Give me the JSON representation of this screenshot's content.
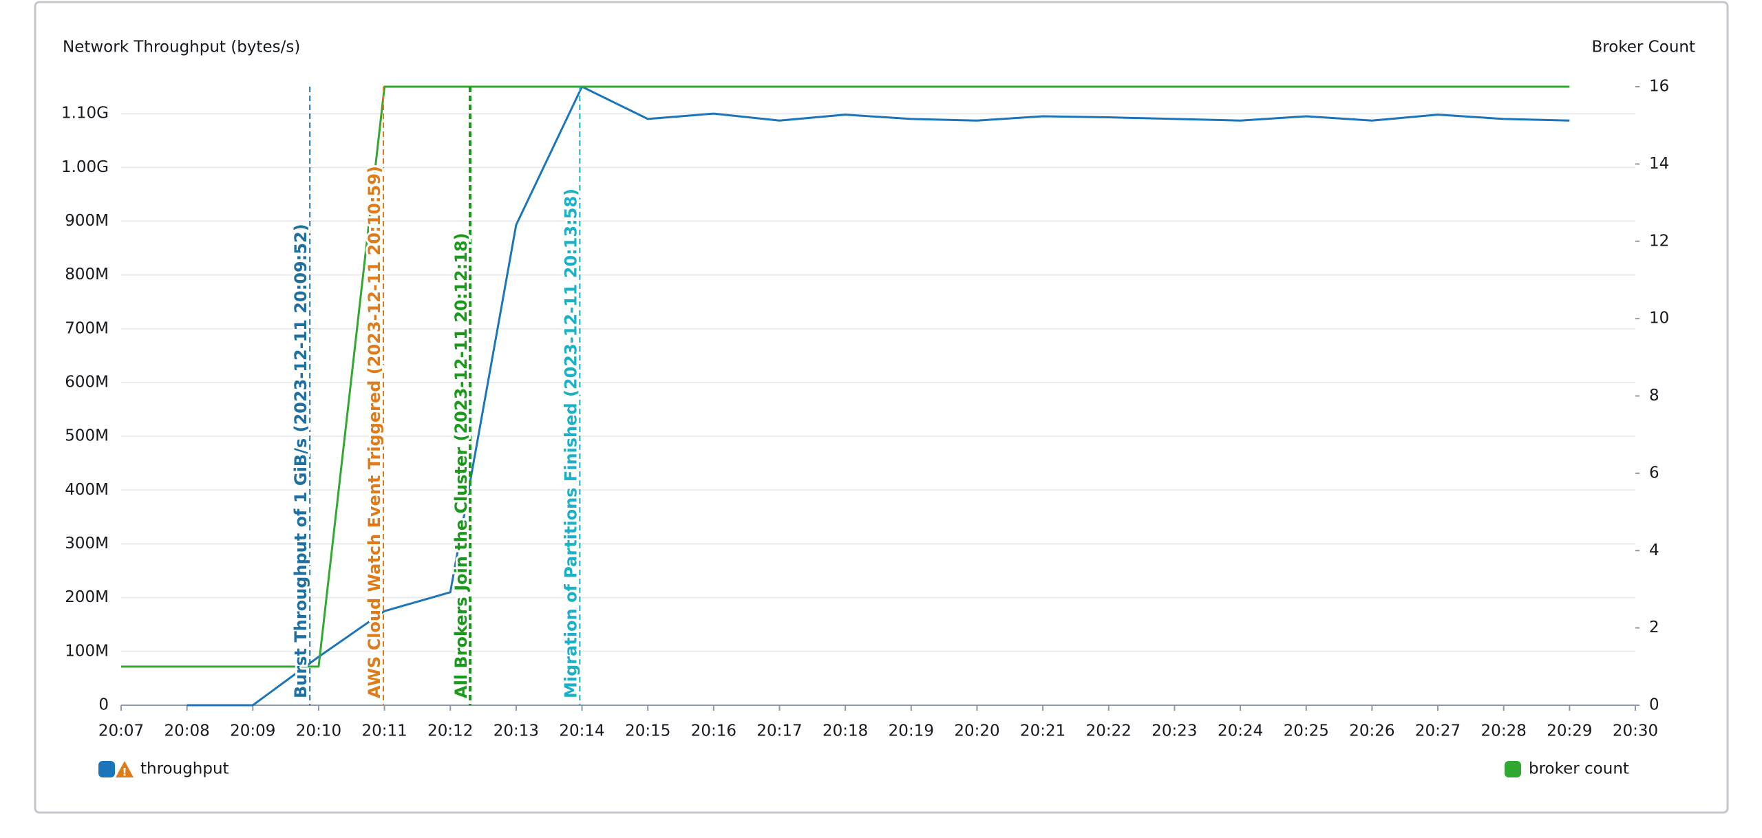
{
  "chart_data": {
    "type": "line",
    "y_label": "Network Throughput (bytes/s)",
    "y2_label": "Broker Count",
    "x": [
      "20:07",
      "20:08",
      "20:09",
      "20:10",
      "20:11",
      "20:12",
      "20:13",
      "20:14",
      "20:15",
      "20:16",
      "20:17",
      "20:18",
      "20:19",
      "20:20",
      "20:21",
      "20:22",
      "20:23",
      "20:24",
      "20:25",
      "20:26",
      "20:27",
      "20:28",
      "20:29"
    ],
    "xlim": [
      "20:07",
      "20:30"
    ],
    "xticks": [
      "20:07",
      "20:08",
      "20:09",
      "20:10",
      "20:11",
      "20:12",
      "20:13",
      "20:14",
      "20:15",
      "20:16",
      "20:17",
      "20:18",
      "20:19",
      "20:20",
      "20:21",
      "20:22",
      "20:23",
      "20:24",
      "20:25",
      "20:26",
      "20:27",
      "20:28",
      "20:29",
      "20:30"
    ],
    "ylim": [
      0,
      1150000000
    ],
    "yticks": [
      0,
      {
        "value": 100000000,
        "label": "100M"
      },
      {
        "value": 200000000,
        "label": "200M"
      },
      {
        "value": 300000000,
        "label": "300M"
      },
      {
        "value": 400000000,
        "label": "400M"
      },
      {
        "value": 500000000,
        "label": "500M"
      },
      {
        "value": 600000000,
        "label": "600M"
      },
      {
        "value": 700000000,
        "label": "700M"
      },
      {
        "value": 800000000,
        "label": "800M"
      },
      {
        "value": 900000000,
        "label": "900M"
      },
      {
        "value": 1000000000,
        "label": "1.00G"
      },
      {
        "value": 1100000000,
        "label": "1.10G"
      }
    ],
    "y2lim": [
      0,
      16
    ],
    "y2ticks": [
      0,
      2,
      4,
      6,
      8,
      10,
      12,
      14,
      16
    ],
    "grid": true,
    "series": [
      {
        "name": "throughput",
        "color": "#1b75bb",
        "values": [
          null,
          0,
          0,
          90000000,
          175000000,
          210000000,
          893000000,
          1150000000,
          1090000000,
          1100000000,
          1087000000,
          1098000000,
          1090000000,
          1087000000,
          1095000000,
          1093000000,
          1090000000,
          1087000000,
          1095000000,
          1087000000,
          1098000000,
          1090000000,
          1087000000
        ]
      },
      {
        "name": "broker count",
        "color": "#31a82f",
        "axis": "y2",
        "values": [
          1,
          1,
          1,
          1,
          16,
          16,
          16,
          16,
          16,
          16,
          16,
          16,
          16,
          16,
          16,
          16,
          16,
          16,
          16,
          16,
          16,
          16,
          16
        ]
      }
    ],
    "annotations": [
      {
        "text": "Burst Throughput of 1 GiB/s (2023-12-11 20:09:52)",
        "x": "20:09:52",
        "color": "#1f6fa0"
      },
      {
        "text": "AWS Cloud Watch Event Triggered (2023-12-11 20:10:59)",
        "x": "20:10:59",
        "color": "#e07b18"
      },
      {
        "text": "All Brokers Join the Cluster (2023-12-11 20:12:18)",
        "x": "20:12:18",
        "color": "#1a9a1a"
      },
      {
        "text": "Migration of Partitions Finished (2023-12-11 20:13:58)",
        "x": "20:13:58",
        "color": "#19b0c8"
      }
    ]
  }
}
